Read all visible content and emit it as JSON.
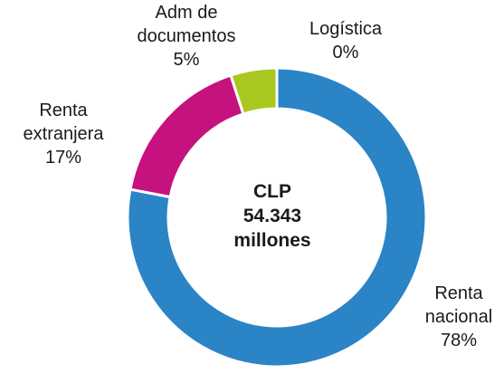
{
  "chart_data": {
    "type": "donut",
    "categories": [
      "Renta nacional",
      "Renta extranjera",
      "Adm de documentos",
      "Logística"
    ],
    "values": [
      78,
      17,
      5,
      0
    ],
    "value_labels": [
      "78%",
      "17%",
      "5%",
      "0%"
    ],
    "colors": [
      "#2a84c6",
      "#c5127e",
      "#a8c81f",
      "#f29100"
    ],
    "center_label": [
      "CLP",
      "54.343",
      "millones"
    ]
  }
}
